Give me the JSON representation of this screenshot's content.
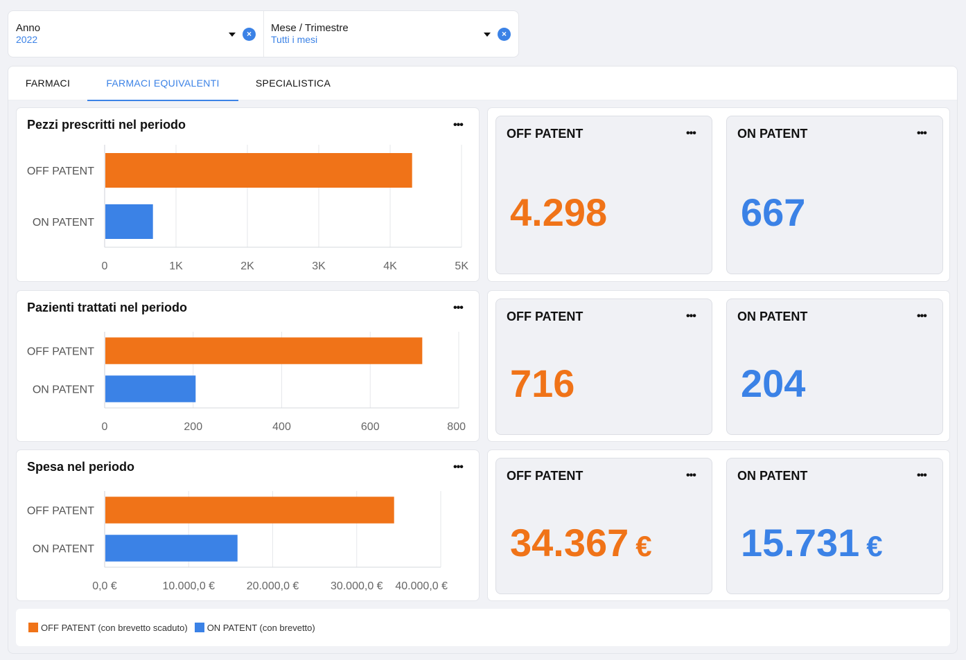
{
  "filters": {
    "year": {
      "label": "Anno",
      "value": "2022"
    },
    "period": {
      "label": "Mese / Trimestre",
      "value": "Tutti i mesi"
    },
    "clear_symbol": "×"
  },
  "tabs": [
    {
      "label": "FARMACI",
      "active": false
    },
    {
      "label": "FARMACI EQUIVALENTI",
      "active": true
    },
    {
      "label": "SPECIALISTICA",
      "active": false
    }
  ],
  "menu_symbol": "•••",
  "colors": {
    "off_patent": "#f07318",
    "on_patent": "#3b82e6"
  },
  "chart_data": [
    {
      "type": "bar",
      "orientation": "horizontal",
      "title": "Pezzi prescritti nel periodo",
      "categories": [
        "OFF PATENT",
        "ON PATENT"
      ],
      "values": [
        4298,
        667
      ],
      "xlim": [
        0,
        5000
      ],
      "ticks": [
        0,
        1000,
        2000,
        3000,
        4000,
        5000
      ],
      "tick_labels": [
        "0",
        "1K",
        "2K",
        "3K",
        "4K",
        "5K"
      ],
      "grid": true
    },
    {
      "type": "bar",
      "orientation": "horizontal",
      "title": "Pazienti trattati nel periodo",
      "categories": [
        "OFF PATENT",
        "ON PATENT"
      ],
      "values": [
        716,
        204
      ],
      "xlim": [
        0,
        800
      ],
      "ticks": [
        0,
        200,
        400,
        600,
        800
      ],
      "tick_labels": [
        "0",
        "200",
        "400",
        "600",
        "800"
      ],
      "grid": true
    },
    {
      "type": "bar",
      "orientation": "horizontal",
      "title": "Spesa nel periodo",
      "categories": [
        "OFF PATENT",
        "ON PATENT"
      ],
      "values": [
        34367,
        15731
      ],
      "xlim": [
        0,
        40000
      ],
      "ticks": [
        0,
        10000,
        20000,
        30000,
        40000
      ],
      "tick_labels": [
        "0,0 €",
        "10.000,0 €",
        "20.000,0 €",
        "30.000,0 €",
        "40.000,0 €"
      ],
      "grid": true
    }
  ],
  "kpis": [
    {
      "off": {
        "title": "OFF PATENT",
        "value": "4.298",
        "currency": ""
      },
      "on": {
        "title": "ON PATENT",
        "value": "667",
        "currency": ""
      }
    },
    {
      "off": {
        "title": "OFF PATENT",
        "value": "716",
        "currency": ""
      },
      "on": {
        "title": "ON PATENT",
        "value": "204",
        "currency": ""
      }
    },
    {
      "off": {
        "title": "OFF PATENT",
        "value": "34.367",
        "currency": "€"
      },
      "on": {
        "title": "ON PATENT",
        "value": "15.731",
        "currency": "€"
      }
    }
  ],
  "legend": [
    {
      "label": "OFF PATENT (con brevetto scaduto)",
      "color": "#f07318"
    },
    {
      "label": "ON PATENT (con brevetto)",
      "color": "#3b82e6"
    }
  ]
}
